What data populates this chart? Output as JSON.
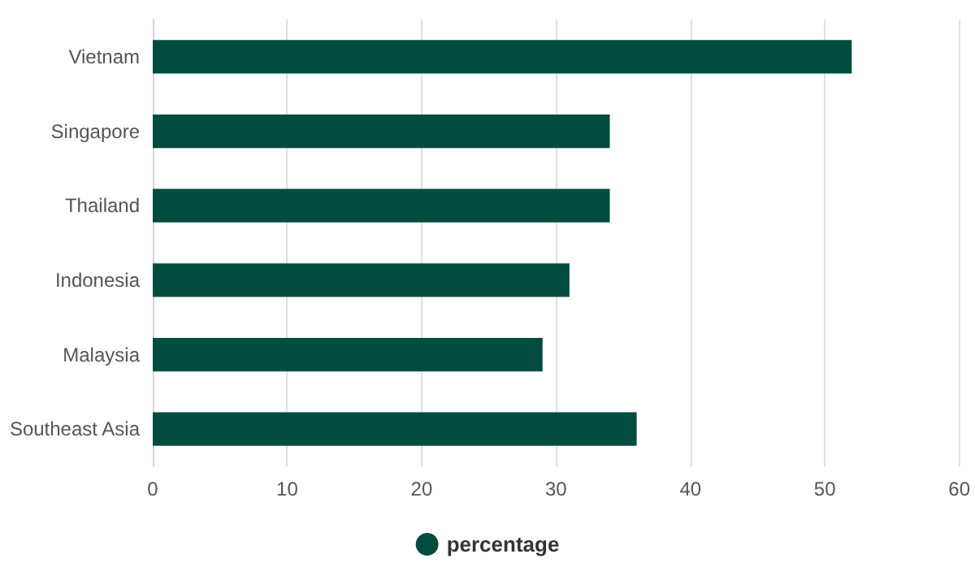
{
  "chart_data": {
    "type": "bar",
    "orientation": "horizontal",
    "categories": [
      "Vietnam",
      "Singapore",
      "Thailand",
      "Indonesia",
      "Malaysia",
      "Southeast Asia"
    ],
    "series": [
      {
        "name": "percentage",
        "color": "#004c3f",
        "values": [
          52,
          34,
          34,
          31,
          29,
          36
        ]
      }
    ],
    "xlim": [
      0,
      60
    ],
    "xticks": [
      0,
      10,
      20,
      30,
      40,
      50,
      60
    ],
    "grid": "x",
    "legend": "bottom"
  }
}
